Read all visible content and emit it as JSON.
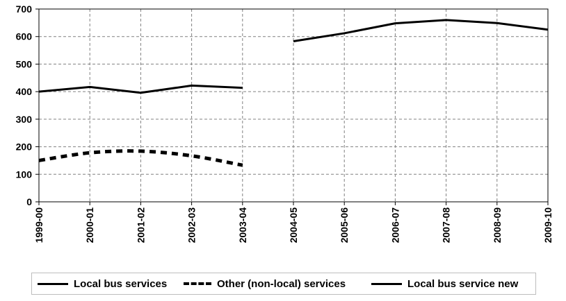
{
  "chart_data": {
    "type": "line",
    "categories": [
      "1999-00",
      "2000-01",
      "2001-02",
      "2002-03",
      "2003-04",
      "2004-05",
      "2005-06",
      "2006-07",
      "2007-08",
      "2008-09",
      "2009-10"
    ],
    "ylim": [
      0,
      700
    ],
    "yticks": [
      0,
      100,
      200,
      300,
      400,
      500,
      600,
      700
    ],
    "grid": true,
    "legend_position": "bottom",
    "series": [
      {
        "name": "Local bus services",
        "style": "solid",
        "color": "#000000",
        "values": [
          400,
          417,
          396,
          422,
          414,
          null,
          null,
          null,
          null,
          null,
          null
        ]
      },
      {
        "name": "Other (non-local) services",
        "style": "dashed",
        "color": "#000000",
        "values": [
          150,
          178,
          184,
          167,
          133,
          null,
          null,
          null,
          null,
          null,
          null
        ]
      },
      {
        "name": "Local bus service new",
        "style": "solid",
        "color": "#000000",
        "values": [
          null,
          null,
          null,
          null,
          null,
          583,
          612,
          648,
          660,
          649,
          625
        ]
      }
    ]
  }
}
